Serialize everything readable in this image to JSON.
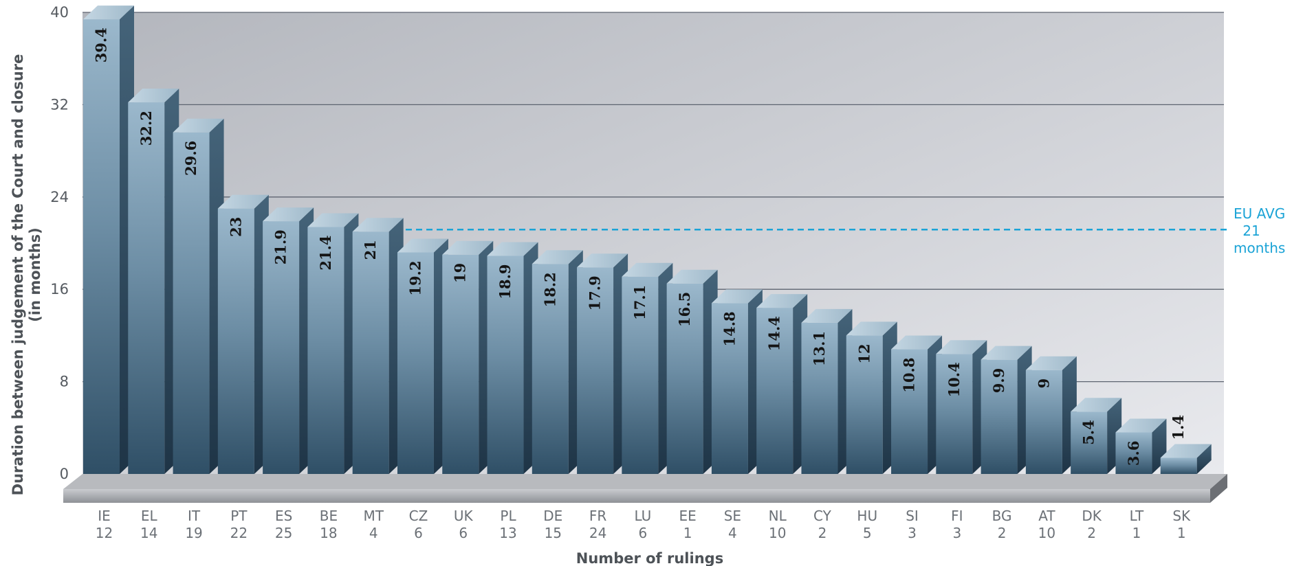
{
  "chart_data": {
    "type": "bar",
    "categories": [
      "IE",
      "EL",
      "IT",
      "PT",
      "ES",
      "BE",
      "MT",
      "CZ",
      "UK",
      "PL",
      "DE",
      "FR",
      "LU",
      "EE",
      "SE",
      "NL",
      "CY",
      "HU",
      "SI",
      "FI",
      "BG",
      "AT",
      "DK",
      "LT",
      "SK"
    ],
    "rulings": [
      "12",
      "14",
      "19",
      "22",
      "25",
      "18",
      "4",
      "6",
      "6",
      "13",
      "15",
      "24",
      "6",
      "1",
      "4",
      "10",
      "2",
      "5",
      "3",
      "3",
      "2",
      "10",
      "2",
      "1",
      "1"
    ],
    "values": [
      39.4,
      32.2,
      29.6,
      23,
      21.9,
      21.4,
      21,
      19.2,
      19,
      18.9,
      18.2,
      17.9,
      17.1,
      16.5,
      14.8,
      14.4,
      13.1,
      12,
      10.8,
      10.4,
      9.9,
      9,
      5.4,
      3.6,
      1.4
    ],
    "value_labels": [
      "39.4",
      "32.2",
      "29.6",
      "23",
      "21.9",
      "21.4",
      "21",
      "19.2",
      "19",
      "18.9",
      "18.2",
      "17.9",
      "17.1",
      "16.5",
      "14.8",
      "14.4",
      "13.1",
      "12",
      "10.8",
      "10.4",
      "9.9",
      "9",
      "5.4",
      "3.6",
      "1.4"
    ],
    "ylim": [
      0,
      40
    ],
    "yticks": [
      0,
      8,
      16,
      24,
      32,
      40
    ],
    "ylabel_line1": "Duration between judgement of the Court and closure",
    "ylabel_line2": "(in months)",
    "xlabel": "Number of rulings",
    "grid": true,
    "reference_line": {
      "value": 21,
      "label_lines": [
        "EU AVG",
        "21",
        "months"
      ],
      "color": "#1aa3d6"
    }
  }
}
